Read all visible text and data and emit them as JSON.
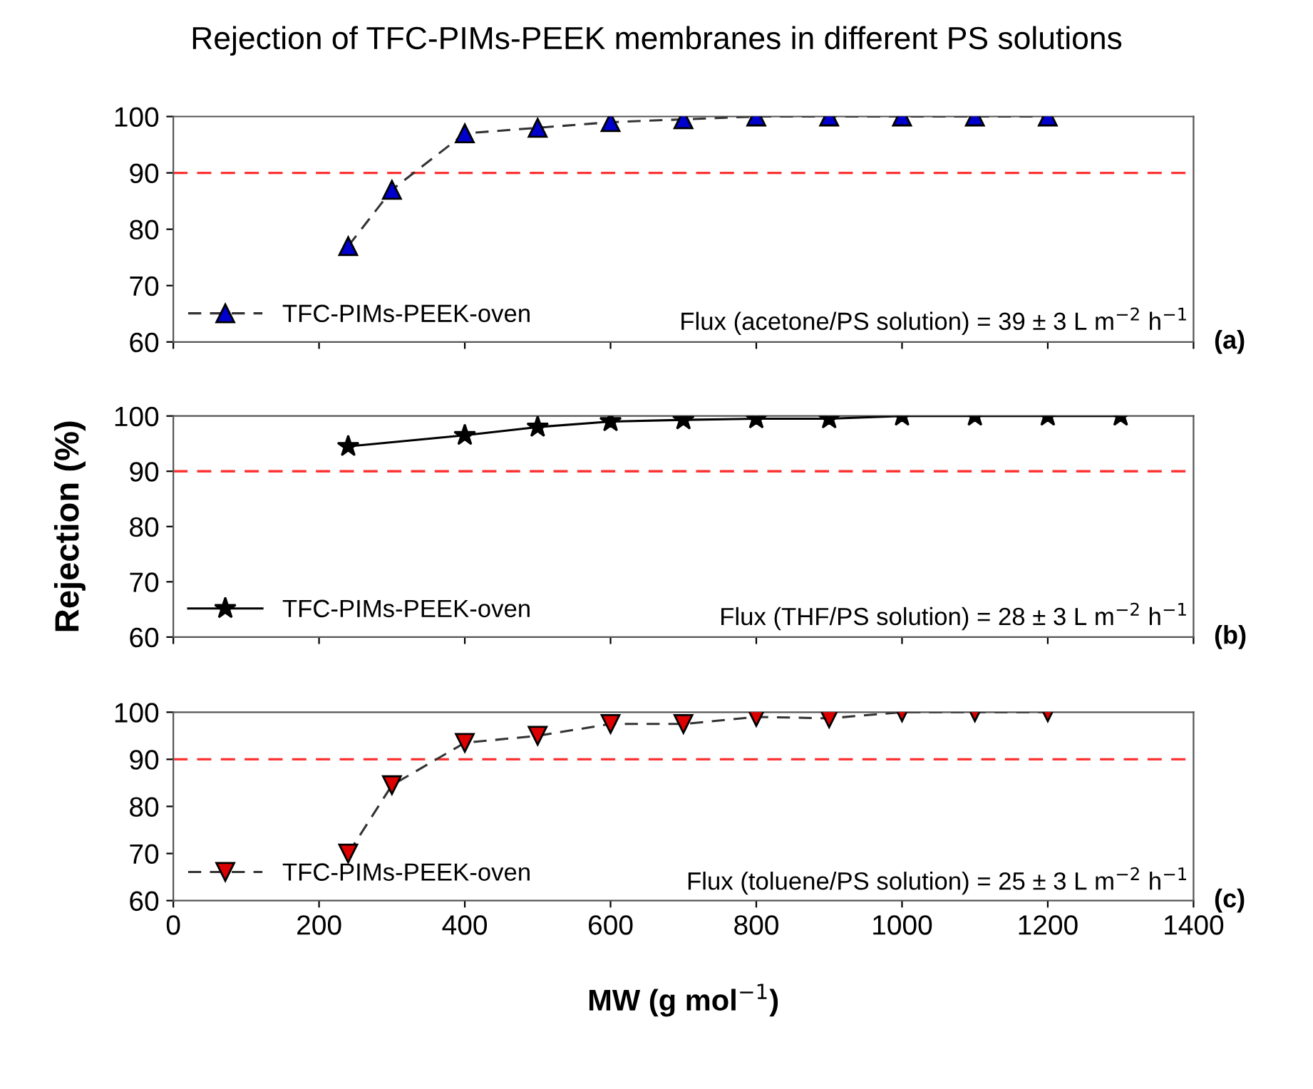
{
  "chart_data": [
    {
      "type": "line",
      "title": "Rejection of TFC-PIMs-PEEK membranes in different PS solutions",
      "xlim": [
        0,
        1400
      ],
      "xticks": [
        0,
        200,
        400,
        600,
        800,
        1000,
        1200,
        1400
      ],
      "ylim": [
        60,
        100
      ],
      "yticks": [
        60,
        70,
        80,
        90,
        100
      ],
      "tick_labels": "y",
      "marker": "triangle",
      "line_style": "dashed",
      "legend": "bottom left",
      "grid": false,
      "series": [
        {
          "name": "TFC-PIMs-PEEK-oven",
          "color": "#0000cc",
          "x": [
            240,
            300,
            400,
            500,
            600,
            700,
            800,
            900,
            1000,
            1100,
            1200
          ],
          "values": [
            77,
            87,
            97,
            98,
            99,
            99.5,
            100,
            100,
            100,
            100,
            100
          ]
        }
      ],
      "ref_lines": [
        {
          "axis": "y",
          "value": 90,
          "color": "#ff3333",
          "line_style": "dashed"
        }
      ],
      "annotations": [
        "Flux (acetone/PS solution) = 39 ± 3 L m$^{−2}$ h$^{−1}$",
        "(a)"
      ]
    },
    {
      "type": "line",
      "ylabel": "Rejection (%)",
      "xlim": [
        0,
        1400
      ],
      "xticks": [
        0,
        200,
        400,
        600,
        800,
        1000,
        1200,
        1400
      ],
      "ylim": [
        60,
        100
      ],
      "yticks": [
        60,
        70,
        80,
        90,
        100
      ],
      "tick_labels": "y",
      "marker": "star",
      "line_style": "solid",
      "legend": "bottom left",
      "grid": false,
      "series": [
        {
          "name": "TFC-PIMs-PEEK-oven",
          "color": "#000000",
          "x": [
            240,
            400,
            500,
            600,
            700,
            800,
            900,
            1000,
            1100,
            1200,
            1300
          ],
          "values": [
            94.5,
            96.5,
            98,
            99,
            99.3,
            99.5,
            99.5,
            100,
            100,
            100,
            100
          ]
        }
      ],
      "ref_lines": [
        {
          "axis": "y",
          "value": 90,
          "color": "#ff3333",
          "line_style": "dashed"
        }
      ],
      "annotations": [
        "Flux (THF/PS solution) = 28 ± 3 L m$^{−2}$ h$^{−1}$",
        "(b)"
      ]
    },
    {
      "type": "line",
      "xlabel": "MW (g mol$^{−1}$)",
      "xlim": [
        0,
        1400
      ],
      "xticks": [
        0,
        200,
        400,
        600,
        800,
        1000,
        1200,
        1400
      ],
      "ylim": [
        60,
        100
      ],
      "yticks": [
        60,
        70,
        80,
        90,
        100
      ],
      "marker": "triangle_down",
      "line_style": "dashed",
      "legend": "bottom left",
      "grid": false,
      "series": [
        {
          "name": "TFC-PIMs-PEEK-oven",
          "color": "#dd0000",
          "x": [
            240,
            300,
            400,
            500,
            600,
            700,
            800,
            900,
            1000,
            1100,
            1200
          ],
          "values": [
            70,
            84.5,
            93.5,
            95,
            97.5,
            97.5,
            99,
            98.7,
            100,
            100,
            100
          ]
        }
      ],
      "ref_lines": [
        {
          "axis": "y",
          "value": 90,
          "color": "#ff3333",
          "line_style": "dashed"
        }
      ],
      "annotations": [
        "Flux (toluene/PS solution) = 25 ± 3 L m$^{−2}$ h$^{−1}$",
        "(c)"
      ]
    }
  ]
}
